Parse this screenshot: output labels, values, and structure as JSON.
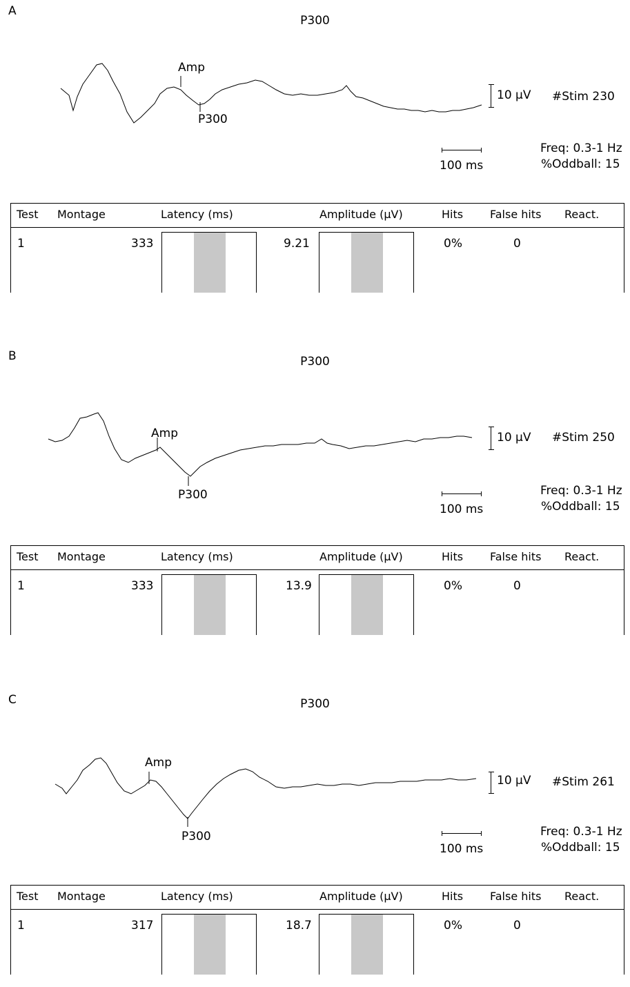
{
  "panels": [
    {
      "letter": "A",
      "title": "P300",
      "labels": {
        "amp": "Amp",
        "p300": "P300",
        "vscale": "10 µV",
        "hscale": "100 ms",
        "stim": "#Stim 230",
        "freq": "Freq: 0.3-1 Hz",
        "oddball": "%Oddball: 15"
      },
      "table": {
        "headers": [
          "Test",
          "Montage",
          "Latency (ms)",
          "Amplitude (µV)",
          "Hits",
          "False hits",
          "React."
        ],
        "row": {
          "test": "1",
          "montage": "",
          "latency": "333",
          "amplitude": "9.21",
          "hits": "0%",
          "false_hits": "0",
          "react": ""
        }
      }
    },
    {
      "letter": "B",
      "title": "P300",
      "labels": {
        "amp": "Amp",
        "p300": "P300",
        "vscale": "10 µV",
        "hscale": "100 ms",
        "stim": "#Stim 250",
        "freq": "Freq: 0.3-1 Hz",
        "oddball": "%Oddball: 15"
      },
      "table": {
        "headers": [
          "Test",
          "Montage",
          "Latency (ms)",
          "Amplitude (µV)",
          "Hits",
          "False hits",
          "React."
        ],
        "row": {
          "test": "1",
          "montage": "",
          "latency": "333",
          "amplitude": "13.9",
          "hits": "0%",
          "false_hits": "0",
          "react": ""
        }
      }
    },
    {
      "letter": "C",
      "title": "P300",
      "labels": {
        "amp": "Amp",
        "p300": "P300",
        "vscale": "10 µV",
        "hscale": "100 ms",
        "stim": "#Stim 261",
        "freq": "Freq: 0.3-1 Hz",
        "oddball": "%Oddball: 15"
      },
      "table": {
        "headers": [
          "Test",
          "Montage",
          "Latency (ms)",
          "Amplitude (µV)",
          "Hits",
          "False hits",
          "React."
        ],
        "row": {
          "test": "1",
          "montage": "",
          "latency": "317",
          "amplitude": "18.7",
          "hits": "0%",
          "false_hits": "0",
          "react": ""
        }
      }
    }
  ],
  "chart_data": [
    {
      "type": "line",
      "title": "P300",
      "series": [
        {
          "name": "",
          "values": []
        }
      ],
      "stim": 230,
      "latency_ms": 333,
      "amplitude_uv": 9.21
    },
    {
      "type": "line",
      "title": "P300",
      "series": [
        {
          "name": "",
          "values": []
        }
      ],
      "stim": 250,
      "latency_ms": 333,
      "amplitude_uv": 13.9
    },
    {
      "type": "line",
      "title": "P300",
      "series": [
        {
          "name": "",
          "values": []
        }
      ],
      "stim": 261,
      "latency_ms": 317,
      "amplitude_uv": 18.7
    }
  ],
  "colors": {
    "trace": "#000000",
    "gauge_fill": "#c8c8c8",
    "background": "#ffffff"
  }
}
